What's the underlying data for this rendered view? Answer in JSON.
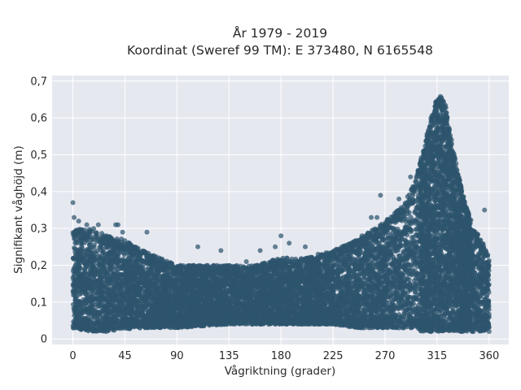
{
  "chart_data": {
    "type": "scatter",
    "title_line1": "År 1979 - 2019",
    "title_line2": "Koordinat (Sweref 99 TM): E 373480, N 6165548",
    "xlabel": "Vågriktning (grader)",
    "ylabel": "Signifikant våghöjd (m)",
    "xlim": [
      -18,
      377
    ],
    "ylim": [
      -0.015,
      0.715
    ],
    "x_ticks": [
      0,
      45,
      90,
      135,
      180,
      225,
      270,
      315,
      360
    ],
    "x_tick_labels": [
      "0",
      "45",
      "90",
      "135",
      "180",
      "225",
      "270",
      "315",
      "360"
    ],
    "y_ticks": [
      0,
      0.1,
      0.2,
      0.3,
      0.4,
      0.5,
      0.6,
      0.7
    ],
    "y_tick_labels": [
      "0",
      "0,1",
      "0,2",
      "0,3",
      "0,4",
      "0,5",
      "0,6",
      "0,7"
    ],
    "grid": true,
    "legend": "none",
    "colors": {
      "point": "#2e556e",
      "plot_bg": "#e6e8f0",
      "grid": "#ffffff"
    },
    "envelope": {
      "x": [
        0,
        15,
        30,
        45,
        60,
        75,
        90,
        112,
        135,
        157,
        180,
        202,
        225,
        247,
        270,
        285,
        295,
        302,
        308,
        313,
        318,
        322,
        327,
        333,
        340,
        347,
        355,
        360
      ],
      "y_min": [
        0.03,
        0.02,
        0.02,
        0.025,
        0.03,
        0.03,
        0.03,
        0.035,
        0.04,
        0.04,
        0.04,
        0.04,
        0.04,
        0.03,
        0.03,
        0.03,
        0.03,
        0.02,
        0.02,
        0.02,
        0.02,
        0.02,
        0.02,
        0.02,
        0.02,
        0.02,
        0.02,
        0.02
      ],
      "y_max": [
        0.3,
        0.3,
        0.28,
        0.27,
        0.24,
        0.22,
        0.2,
        0.2,
        0.2,
        0.2,
        0.22,
        0.22,
        0.24,
        0.27,
        0.32,
        0.36,
        0.42,
        0.5,
        0.58,
        0.64,
        0.66,
        0.64,
        0.55,
        0.45,
        0.36,
        0.3,
        0.26,
        0.22
      ]
    },
    "outliers": [
      {
        "x": 0,
        "y": 0.37
      },
      {
        "x": 1,
        "y": 0.33
      },
      {
        "x": 5,
        "y": 0.32
      },
      {
        "x": 12,
        "y": 0.31
      },
      {
        "x": 18,
        "y": 0.3
      },
      {
        "x": 22,
        "y": 0.31
      },
      {
        "x": 37,
        "y": 0.31
      },
      {
        "x": 39,
        "y": 0.31
      },
      {
        "x": 43,
        "y": 0.29
      },
      {
        "x": 64,
        "y": 0.29
      },
      {
        "x": 108,
        "y": 0.25
      },
      {
        "x": 128,
        "y": 0.24
      },
      {
        "x": 150,
        "y": 0.21
      },
      {
        "x": 162,
        "y": 0.24
      },
      {
        "x": 175,
        "y": 0.25
      },
      {
        "x": 180,
        "y": 0.28
      },
      {
        "x": 187,
        "y": 0.26
      },
      {
        "x": 201,
        "y": 0.25
      },
      {
        "x": 212,
        "y": 0.23
      },
      {
        "x": 220,
        "y": 0.23
      },
      {
        "x": 250,
        "y": 0.28
      },
      {
        "x": 258,
        "y": 0.33
      },
      {
        "x": 263,
        "y": 0.33
      },
      {
        "x": 266,
        "y": 0.39
      },
      {
        "x": 282,
        "y": 0.38
      },
      {
        "x": 284,
        "y": 0.35
      },
      {
        "x": 292,
        "y": 0.44
      },
      {
        "x": 294,
        "y": 0.37
      },
      {
        "x": 304,
        "y": 0.5
      },
      {
        "x": 356,
        "y": 0.35
      },
      {
        "x": 175,
        "y": 0.04
      },
      {
        "x": 181,
        "y": 0.05
      }
    ]
  }
}
